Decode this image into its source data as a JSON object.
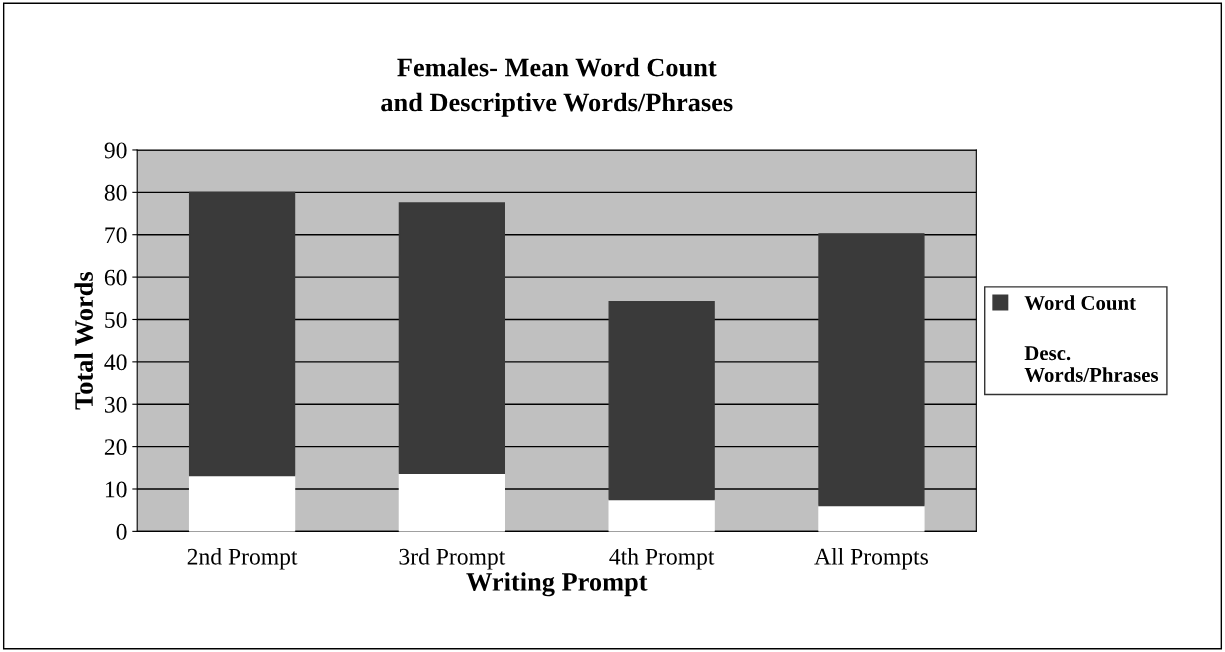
{
  "chart_data": {
    "type": "bar",
    "title": "Females- Mean Word Count\nand Descriptive Words/Phrases",
    "xlabel": "Writing Prompt",
    "ylabel": "Total Words",
    "categories": [
      "2nd Prompt",
      "3rd Prompt",
      "4th Prompt",
      "All Prompts"
    ],
    "stacked": true,
    "series": [
      {
        "name": "Desc.\nWords/Phrases",
        "color": "#ffffff",
        "values": [
          13.2,
          13.7,
          7.5,
          6.1
        ]
      },
      {
        "name": "Word Count",
        "color": "#3a3a3a",
        "values": [
          66.8,
          63.8,
          46.7,
          64.1
        ]
      }
    ],
    "ylim": [
      0,
      90
    ],
    "yticks": [
      0,
      10,
      20,
      30,
      40,
      50,
      60,
      70,
      80,
      90
    ],
    "grid": "y",
    "legend": "right"
  }
}
